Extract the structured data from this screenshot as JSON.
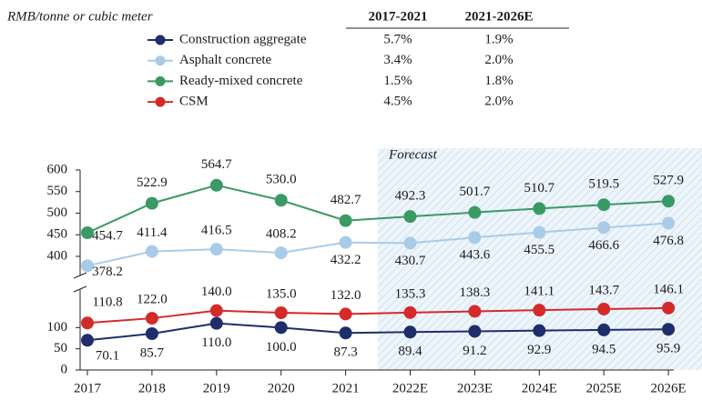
{
  "chart_data": {
    "type": "line",
    "unit_label": "RMB/tonne or cubic meter",
    "table_headers": [
      "2017-2021",
      "2021-2026E"
    ],
    "categories": [
      "2017",
      "2018",
      "2019",
      "2020",
      "2021",
      "2022E",
      "2023E",
      "2024E",
      "2025E",
      "2026E"
    ],
    "forecast_label": "Forecast",
    "forecast_from": "2022E",
    "y_segments": [
      {
        "ylim": [
          0,
          150
        ],
        "yticks": [
          0,
          50,
          100
        ]
      },
      {
        "ylim": [
          365,
          600
        ],
        "yticks": [
          400,
          450,
          500,
          550,
          600
        ]
      }
    ],
    "series": [
      {
        "name": "Construction aggregate",
        "color": "#1f2d6b",
        "label_color": "#222222",
        "cagr": [
          "5.7%",
          "1.9%"
        ],
        "values": [
          70.1,
          85.7,
          110.0,
          100.0,
          87.3,
          89.4,
          91.2,
          92.9,
          94.5,
          95.9
        ],
        "value_labels": [
          "70.1",
          "85.7",
          "110.0",
          "100.0",
          "87.3",
          "89.4",
          "91.2",
          "92.9",
          "94.5",
          "95.9"
        ]
      },
      {
        "name": "Asphalt concrete",
        "color": "#a9cbe8",
        "label_color": "#34406e",
        "cagr": [
          "3.4%",
          "2.0%"
        ],
        "values": [
          378.2,
          411.4,
          416.5,
          408.2,
          432.2,
          430.7,
          443.6,
          455.5,
          466.6,
          476.8
        ]
      },
      {
        "name": "Ready-mixed concrete",
        "color": "#3a9a65",
        "label_color": "#3a9a65",
        "cagr": [
          "1.5%",
          "1.8%"
        ],
        "values": [
          454.7,
          522.9,
          564.7,
          530.0,
          482.7,
          492.3,
          501.7,
          510.7,
          519.5,
          527.9
        ]
      },
      {
        "name": "CSM",
        "color": "#d42a2a",
        "label_color": "#222222",
        "cagr": [
          "4.5%",
          "2.0%"
        ],
        "values": [
          110.8,
          122.0,
          140.0,
          135.0,
          132.0,
          135.3,
          138.3,
          141.1,
          143.7,
          146.1
        ]
      }
    ]
  }
}
